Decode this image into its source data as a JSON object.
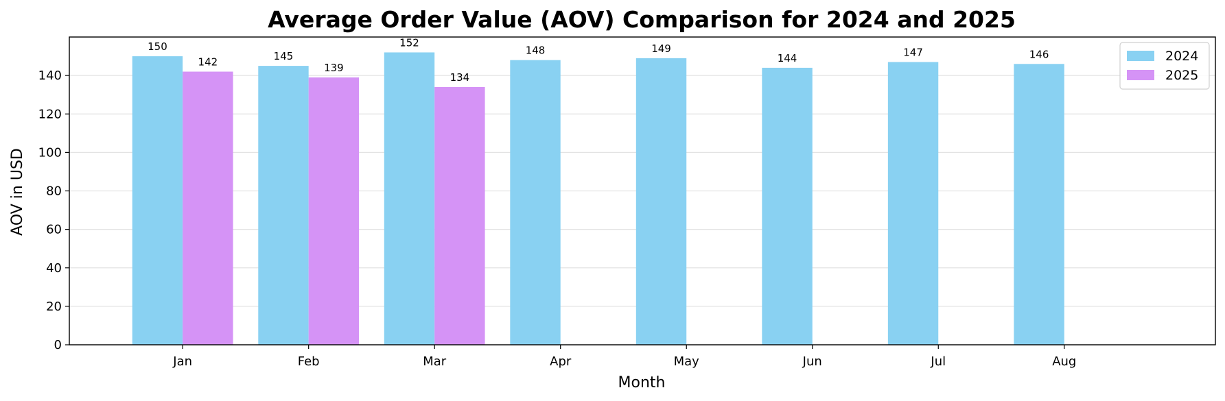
{
  "chart_data": {
    "type": "bar",
    "title": "Average Order Value (AOV) Comparison for 2024 and 2025",
    "xlabel": "Month",
    "ylabel": "AOV in USD",
    "categories": [
      "Jan",
      "Feb",
      "Mar",
      "Apr",
      "May",
      "Jun",
      "Jul",
      "Aug"
    ],
    "series": [
      {
        "name": "2024",
        "color": "#89d1f2",
        "values": [
          150,
          145,
          152,
          148,
          149,
          144,
          147,
          146
        ]
      },
      {
        "name": "2025",
        "color": "#d593f6",
        "values": [
          142,
          139,
          134,
          null,
          null,
          null,
          null,
          null
        ]
      }
    ],
    "ylim": [
      0,
      160
    ],
    "yticks": [
      0,
      20,
      40,
      60,
      80,
      100,
      120,
      140
    ],
    "grid": true,
    "legend_position": "top-right"
  }
}
